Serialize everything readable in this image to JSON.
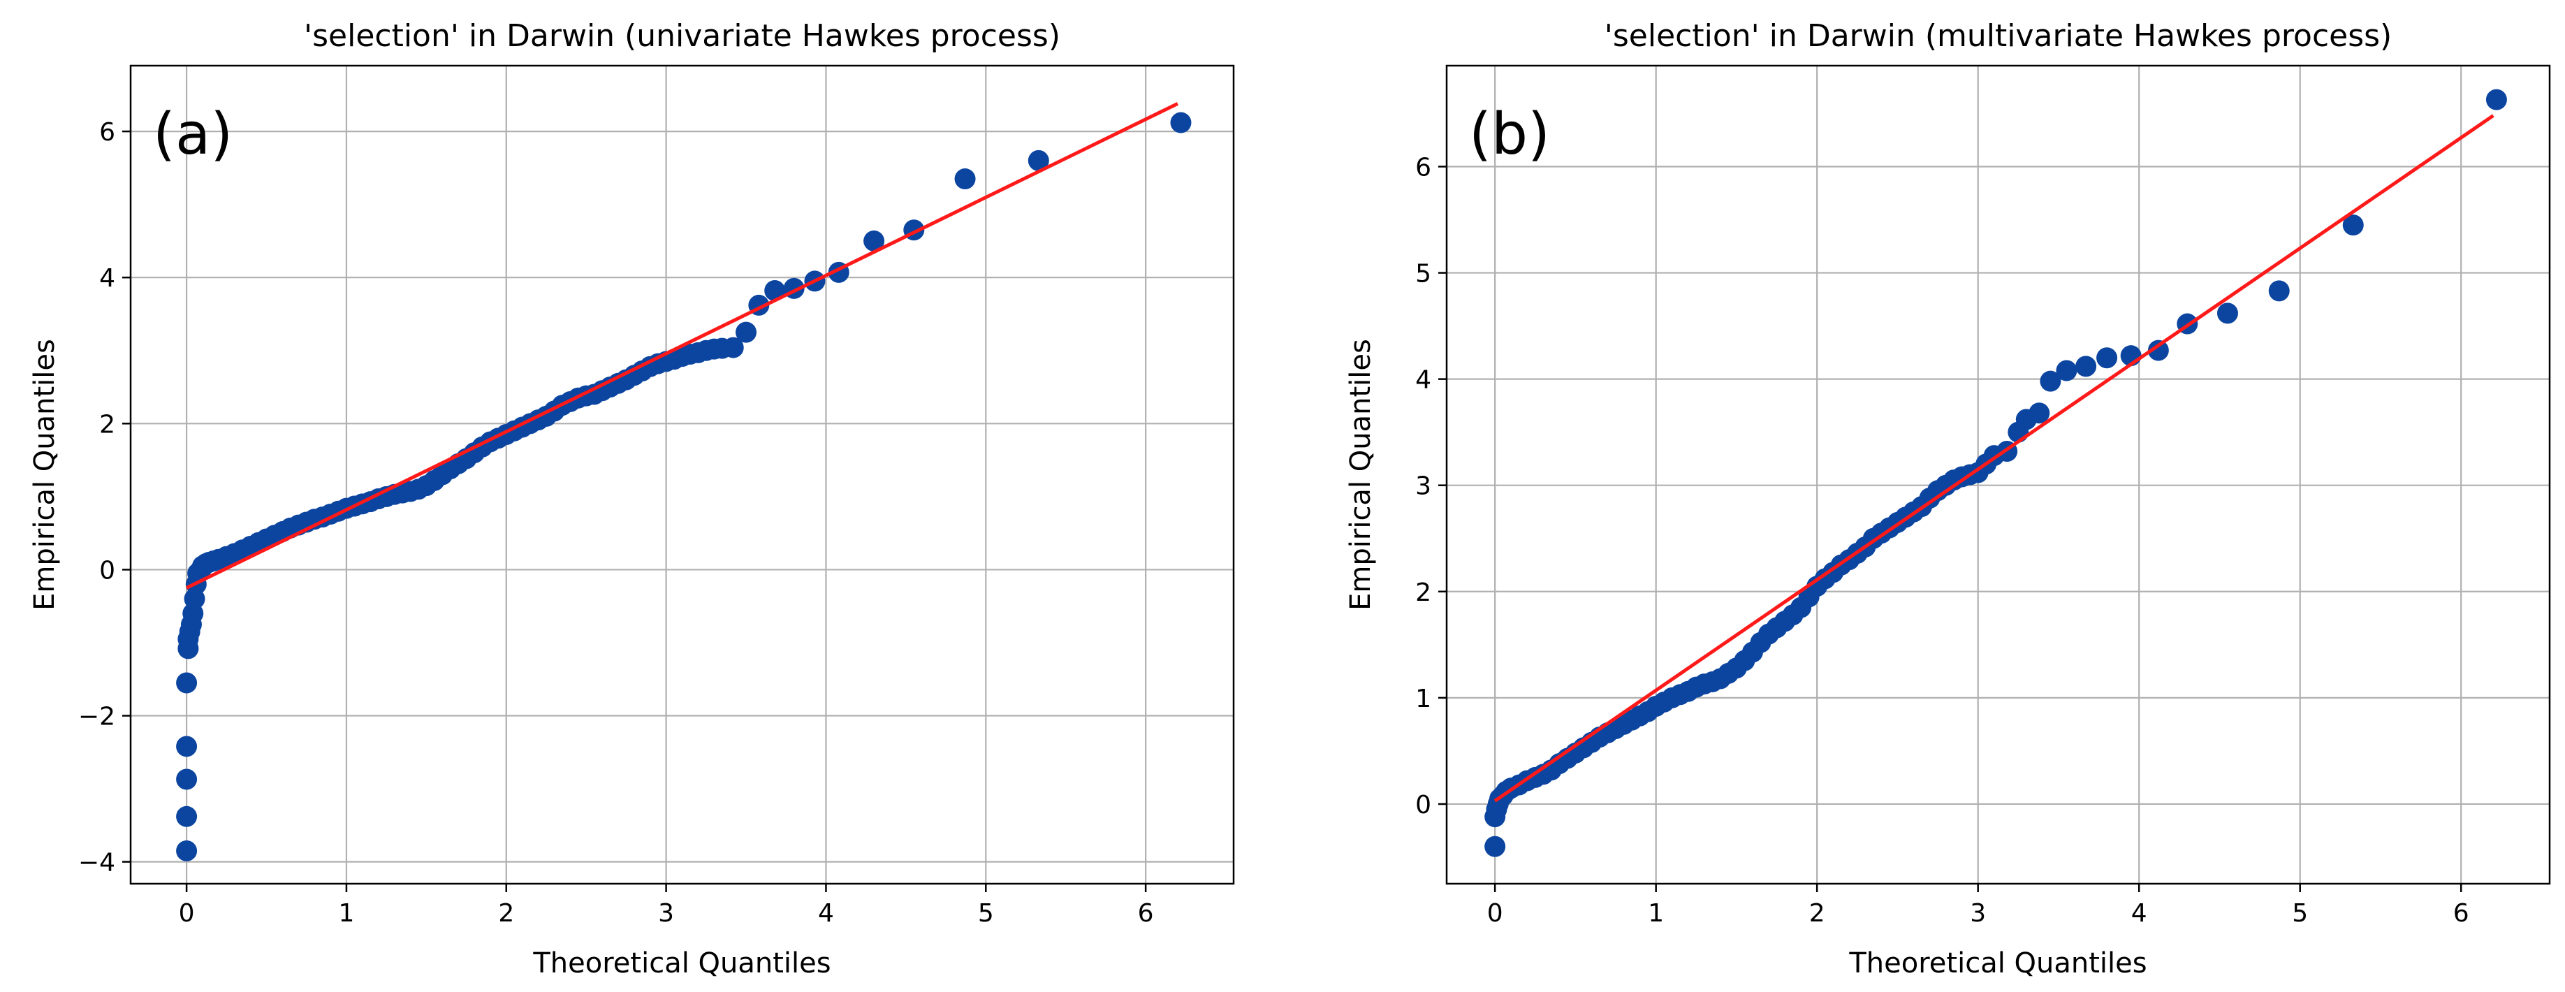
{
  "chart_data": [
    {
      "type": "scatter",
      "panel_label": "(a)",
      "title": "'selection' in Darwin (univariate Hawkes process)",
      "xlabel": "Theoretical Quantiles",
      "ylabel": "Empirical Quantiles",
      "xlim": [
        -0.35,
        6.55
      ],
      "ylim": [
        -4.3,
        6.9
      ],
      "xticks": [
        0,
        1,
        2,
        3,
        4,
        5,
        6
      ],
      "yticks": [
        -4,
        -2,
        0,
        2,
        4,
        6
      ],
      "ytick_labels": [
        "−4",
        "−2",
        "0",
        "2",
        "4",
        "6"
      ],
      "grid": true,
      "marker_color": "#0b45a0",
      "line_color": "#ff1a1a",
      "fit_line": {
        "x": [
          0,
          6.2
        ],
        "y": [
          -0.25,
          6.38
        ]
      },
      "series": [
        {
          "points": [
            [
              0.0,
              -3.85
            ],
            [
              0.0,
              -3.38
            ],
            [
              0.0,
              -2.87
            ],
            [
              0.0,
              -2.42
            ],
            [
              0.0,
              -1.55
            ],
            [
              0.01,
              -1.08
            ],
            [
              0.01,
              -0.95
            ],
            [
              0.02,
              -0.85
            ],
            [
              0.03,
              -0.75
            ],
            [
              0.04,
              -0.6
            ],
            [
              0.05,
              -0.4
            ],
            [
              0.06,
              -0.2
            ],
            [
              0.07,
              -0.05
            ],
            [
              0.09,
              0.0
            ],
            [
              0.1,
              0.05
            ],
            [
              0.12,
              0.08
            ],
            [
              0.14,
              0.1
            ],
            [
              0.17,
              0.12
            ],
            [
              0.2,
              0.14
            ],
            [
              0.25,
              0.18
            ],
            [
              0.3,
              0.22
            ],
            [
              0.35,
              0.27
            ],
            [
              0.4,
              0.32
            ],
            [
              0.45,
              0.37
            ],
            [
              0.5,
              0.42
            ],
            [
              0.55,
              0.47
            ],
            [
              0.6,
              0.52
            ],
            [
              0.65,
              0.57
            ],
            [
              0.7,
              0.61
            ],
            [
              0.75,
              0.65
            ],
            [
              0.8,
              0.69
            ],
            [
              0.85,
              0.72
            ],
            [
              0.9,
              0.76
            ],
            [
              0.95,
              0.8
            ],
            [
              1.0,
              0.84
            ],
            [
              1.05,
              0.87
            ],
            [
              1.1,
              0.9
            ],
            [
              1.15,
              0.93
            ],
            [
              1.2,
              0.97
            ],
            [
              1.25,
              1.0
            ],
            [
              1.3,
              1.03
            ],
            [
              1.35,
              1.05
            ],
            [
              1.4,
              1.07
            ],
            [
              1.45,
              1.1
            ],
            [
              1.5,
              1.15
            ],
            [
              1.55,
              1.22
            ],
            [
              1.6,
              1.3
            ],
            [
              1.65,
              1.38
            ],
            [
              1.7,
              1.45
            ],
            [
              1.75,
              1.52
            ],
            [
              1.8,
              1.6
            ],
            [
              1.85,
              1.68
            ],
            [
              1.9,
              1.75
            ],
            [
              1.95,
              1.8
            ],
            [
              2.0,
              1.85
            ],
            [
              2.05,
              1.9
            ],
            [
              2.1,
              1.95
            ],
            [
              2.15,
              2.0
            ],
            [
              2.2,
              2.05
            ],
            [
              2.25,
              2.1
            ],
            [
              2.3,
              2.17
            ],
            [
              2.35,
              2.25
            ],
            [
              2.4,
              2.3
            ],
            [
              2.45,
              2.35
            ],
            [
              2.5,
              2.38
            ],
            [
              2.55,
              2.4
            ],
            [
              2.6,
              2.45
            ],
            [
              2.65,
              2.5
            ],
            [
              2.7,
              2.55
            ],
            [
              2.75,
              2.6
            ],
            [
              2.8,
              2.66
            ],
            [
              2.85,
              2.72
            ],
            [
              2.9,
              2.78
            ],
            [
              2.95,
              2.82
            ],
            [
              3.0,
              2.85
            ],
            [
              3.05,
              2.88
            ],
            [
              3.1,
              2.92
            ],
            [
              3.15,
              2.95
            ],
            [
              3.2,
              2.97
            ],
            [
              3.25,
              3.0
            ],
            [
              3.3,
              3.02
            ],
            [
              3.35,
              3.03
            ],
            [
              3.42,
              3.04
            ],
            [
              3.5,
              3.25
            ],
            [
              3.58,
              3.62
            ],
            [
              3.68,
              3.82
            ],
            [
              3.8,
              3.85
            ],
            [
              3.93,
              3.95
            ],
            [
              4.08,
              4.07
            ],
            [
              4.3,
              4.5
            ],
            [
              4.55,
              4.65
            ],
            [
              4.87,
              5.35
            ],
            [
              5.33,
              5.6
            ],
            [
              6.22,
              6.12
            ]
          ]
        }
      ]
    },
    {
      "type": "scatter",
      "panel_label": "(b)",
      "title": "'selection' in Darwin (multivariate Hawkes process)",
      "xlabel": "Theoretical Quantiles",
      "ylabel": "Empirical Quantiles",
      "xlim": [
        -0.3,
        6.55
      ],
      "ylim": [
        -0.75,
        6.95
      ],
      "xticks": [
        0,
        1,
        2,
        3,
        4,
        5,
        6
      ],
      "yticks": [
        0,
        1,
        2,
        3,
        4,
        5,
        6
      ],
      "ytick_labels": [
        "0",
        "1",
        "2",
        "3",
        "4",
        "5",
        "6"
      ],
      "grid": true,
      "marker_color": "#0b45a0",
      "line_color": "#ff1a1a",
      "fit_line": {
        "x": [
          0,
          6.2
        ],
        "y": [
          0.03,
          6.48
        ]
      },
      "series": [
        {
          "points": [
            [
              0.0,
              -0.4
            ],
            [
              0.0,
              -0.12
            ],
            [
              0.01,
              -0.05
            ],
            [
              0.02,
              0.0
            ],
            [
              0.03,
              0.05
            ],
            [
              0.05,
              0.08
            ],
            [
              0.07,
              0.12
            ],
            [
              0.1,
              0.15
            ],
            [
              0.15,
              0.18
            ],
            [
              0.2,
              0.22
            ],
            [
              0.25,
              0.25
            ],
            [
              0.3,
              0.28
            ],
            [
              0.35,
              0.32
            ],
            [
              0.4,
              0.38
            ],
            [
              0.45,
              0.43
            ],
            [
              0.5,
              0.48
            ],
            [
              0.55,
              0.53
            ],
            [
              0.6,
              0.58
            ],
            [
              0.65,
              0.63
            ],
            [
              0.7,
              0.67
            ],
            [
              0.75,
              0.71
            ],
            [
              0.8,
              0.75
            ],
            [
              0.85,
              0.79
            ],
            [
              0.9,
              0.83
            ],
            [
              0.95,
              0.87
            ],
            [
              1.0,
              0.92
            ],
            [
              1.05,
              0.96
            ],
            [
              1.1,
              1.0
            ],
            [
              1.15,
              1.03
            ],
            [
              1.2,
              1.06
            ],
            [
              1.25,
              1.1
            ],
            [
              1.3,
              1.13
            ],
            [
              1.35,
              1.15
            ],
            [
              1.4,
              1.18
            ],
            [
              1.45,
              1.23
            ],
            [
              1.5,
              1.28
            ],
            [
              1.55,
              1.35
            ],
            [
              1.6,
              1.43
            ],
            [
              1.65,
              1.52
            ],
            [
              1.7,
              1.6
            ],
            [
              1.75,
              1.66
            ],
            [
              1.8,
              1.72
            ],
            [
              1.85,
              1.78
            ],
            [
              1.9,
              1.85
            ],
            [
              1.95,
              1.95
            ],
            [
              2.0,
              2.05
            ],
            [
              2.05,
              2.12
            ],
            [
              2.1,
              2.18
            ],
            [
              2.15,
              2.25
            ],
            [
              2.2,
              2.3
            ],
            [
              2.25,
              2.36
            ],
            [
              2.3,
              2.42
            ],
            [
              2.35,
              2.5
            ],
            [
              2.4,
              2.55
            ],
            [
              2.45,
              2.6
            ],
            [
              2.5,
              2.65
            ],
            [
              2.55,
              2.7
            ],
            [
              2.6,
              2.75
            ],
            [
              2.65,
              2.8
            ],
            [
              2.7,
              2.88
            ],
            [
              2.75,
              2.95
            ],
            [
              2.8,
              3.0
            ],
            [
              2.85,
              3.05
            ],
            [
              2.9,
              3.08
            ],
            [
              2.95,
              3.1
            ],
            [
              3.0,
              3.12
            ],
            [
              3.05,
              3.2
            ],
            [
              3.1,
              3.28
            ],
            [
              3.18,
              3.32
            ],
            [
              3.25,
              3.5
            ],
            [
              3.3,
              3.62
            ],
            [
              3.38,
              3.68
            ],
            [
              3.45,
              3.98
            ],
            [
              3.55,
              4.08
            ],
            [
              3.67,
              4.12
            ],
            [
              3.8,
              4.2
            ],
            [
              3.95,
              4.22
            ],
            [
              4.12,
              4.27
            ],
            [
              4.3,
              4.52
            ],
            [
              4.55,
              4.62
            ],
            [
              4.87,
              4.83
            ],
            [
              5.33,
              5.45
            ],
            [
              6.22,
              6.63
            ]
          ]
        }
      ]
    }
  ]
}
